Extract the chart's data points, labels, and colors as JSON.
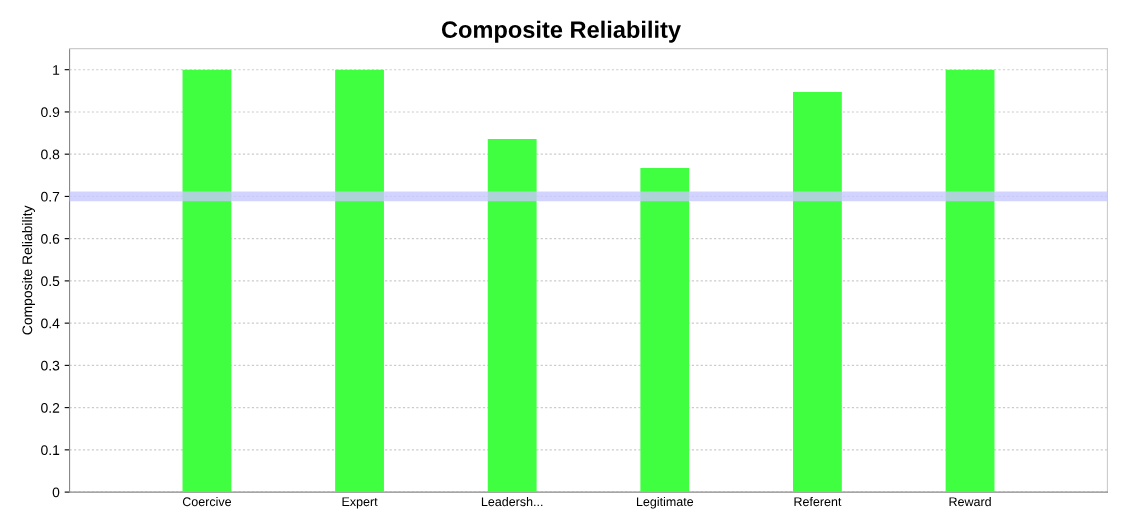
{
  "chart_data": {
    "type": "bar",
    "title": "Composite Reliability",
    "ylabel": "Composite Reliability",
    "categories": [
      "Coercive",
      "Expert",
      "Leadersh...",
      "Legitimate",
      "Referent",
      "Reward"
    ],
    "values": [
      1.0,
      1.0,
      0.836,
      0.767,
      0.947,
      1.0
    ],
    "color": "#40ff40",
    "ylim": [
      0,
      1.05
    ],
    "yticks": [
      0,
      0.1,
      0.2,
      0.3,
      0.4,
      0.5,
      0.6,
      0.7,
      0.8,
      0.9,
      1
    ],
    "grid": "y",
    "ref_lines": [
      {
        "axis": "y",
        "value": 0.7,
        "color": "#c8c8ff"
      }
    ]
  }
}
